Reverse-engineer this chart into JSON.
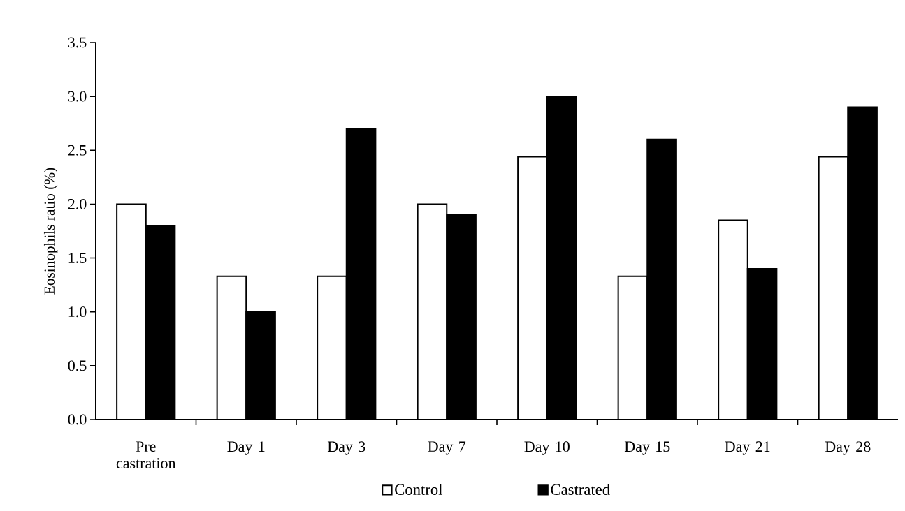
{
  "chart_data": {
    "type": "bar",
    "ylabel": "Eosinophils ratio (%)",
    "categories": [
      "Pre castration",
      "Day 1",
      "Day 3",
      "Day 7",
      "Day 10",
      "Day 15",
      "Day 21",
      "Day 28"
    ],
    "series": [
      {
        "name": "Control",
        "color": "#ffffff",
        "values": [
          2.0,
          1.33,
          1.33,
          2.0,
          2.44,
          1.33,
          1.85,
          2.44
        ]
      },
      {
        "name": "Castrated",
        "color": "#000000",
        "values": [
          1.8,
          1.0,
          2.7,
          1.9,
          3.0,
          2.6,
          1.4,
          2.9
        ]
      }
    ],
    "ylim": [
      0,
      3.5
    ],
    "yticks": [
      {
        "value": 0,
        "label": "0.0"
      },
      {
        "value": 0.5,
        "label": "0.5"
      },
      {
        "value": 1,
        "label": "1.0"
      },
      {
        "value": 1.5,
        "label": "1.5"
      },
      {
        "value": 2,
        "label": "2.0"
      },
      {
        "value": 2.5,
        "label": "2.5"
      },
      {
        "value": 3,
        "label": "3.0"
      },
      {
        "value": 3.5,
        "label": "3.5"
      }
    ],
    "grid": false,
    "legend": "bottom"
  }
}
